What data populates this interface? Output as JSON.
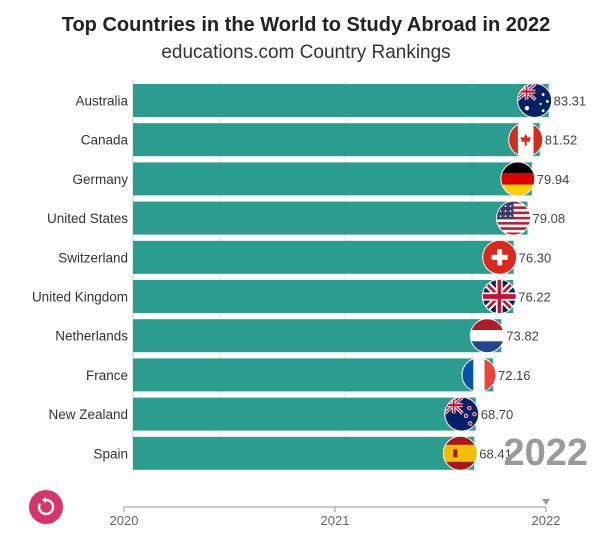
{
  "header": {
    "title": "Top Countries in the World to Study Abroad in 2022",
    "subtitle": "educations.com Country Rankings"
  },
  "current_year": "2022",
  "colors": {
    "bar": "#2a9d8f",
    "accent": "#d8336a",
    "watermark": "#9a9a9a"
  },
  "chart_data": {
    "type": "bar",
    "orientation": "horizontal",
    "categories": [
      "Australia",
      "Canada",
      "Germany",
      "United States",
      "Switzerland",
      "United Kingdom",
      "Netherlands",
      "France",
      "New Zealand",
      "Spain"
    ],
    "values": [
      83.31,
      81.52,
      79.94,
      79.08,
      76.3,
      76.22,
      73.82,
      72.16,
      68.7,
      68.41
    ],
    "value_labels": [
      "83.31",
      "81.52",
      "79.94",
      "79.08",
      "76.30",
      "76.22",
      "73.82",
      "72.16",
      "68.70",
      "68.41"
    ],
    "flags": [
      "australia-flag-icon",
      "canada-flag-icon",
      "germany-flag-icon",
      "united-states-flag-icon",
      "switzerland-flag-icon",
      "united-kingdom-flag-icon",
      "netherlands-flag-icon",
      "france-flag-icon",
      "new-zealand-flag-icon",
      "spain-flag-icon"
    ],
    "xlim": [
      0,
      90
    ],
    "timeline": {
      "ticks": [
        "2020",
        "2021",
        "2022"
      ],
      "current": "2022"
    },
    "grid": true,
    "legend": "none"
  }
}
